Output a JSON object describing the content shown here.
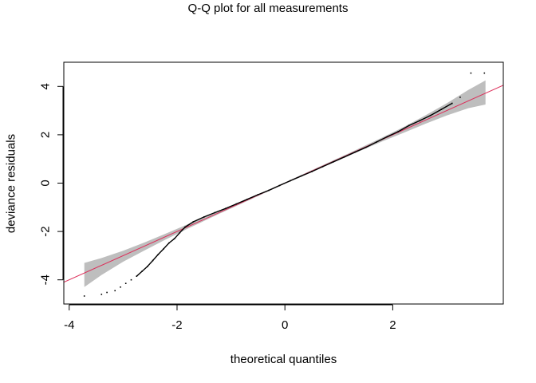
{
  "chart_data": {
    "type": "scatter",
    "title": "Q-Q plot for all measurements",
    "xlabel": "theoretical quantiles",
    "ylabel": "deviance residuals",
    "xlim": [
      -4.1,
      4.05
    ],
    "ylim": [
      -5.0,
      5.0
    ],
    "x_ticks": [
      -4,
      -2,
      0,
      2
    ],
    "y_ticks": [
      -4,
      -2,
      0,
      2,
      4
    ],
    "x_tick_labels": [
      "-4",
      "-2",
      "0",
      "2"
    ],
    "y_tick_labels": [
      "-4",
      "-2",
      "0",
      "2",
      "4"
    ],
    "grid": false,
    "reference_line": {
      "intercept": 0,
      "slope": 1.0,
      "color": "#dc2f5a"
    },
    "band_color": "#bebebe",
    "point_color": "#000000",
    "confidence_band": [
      {
        "x": -3.72,
        "lower": -4.3,
        "upper": -3.3
      },
      {
        "x": -3.4,
        "lower": -3.8,
        "upper": -3.1
      },
      {
        "x": -3.0,
        "lower": -3.25,
        "upper": -2.8
      },
      {
        "x": -2.6,
        "lower": -2.78,
        "upper": -2.45
      },
      {
        "x": -2.2,
        "lower": -2.32,
        "upper": -2.08
      },
      {
        "x": -1.8,
        "lower": -1.88,
        "upper": -1.7
      },
      {
        "x": -1.2,
        "lower": -1.25,
        "upper": -1.15
      },
      {
        "x": 0.0,
        "lower": -0.03,
        "upper": 0.03
      },
      {
        "x": 1.2,
        "lower": 1.15,
        "upper": 1.25
      },
      {
        "x": 1.8,
        "lower": 1.72,
        "upper": 1.88
      },
      {
        "x": 2.2,
        "lower": 2.08,
        "upper": 2.32
      },
      {
        "x": 2.6,
        "lower": 2.45,
        "upper": 2.8
      },
      {
        "x": 3.0,
        "lower": 2.8,
        "upper": 3.3
      },
      {
        "x": 3.4,
        "lower": 3.1,
        "upper": 3.85
      },
      {
        "x": 3.72,
        "lower": 3.25,
        "upper": 4.25
      }
    ],
    "points": [
      [
        -3.72,
        -4.67
      ],
      [
        -3.4,
        -4.6
      ],
      [
        -3.3,
        -4.52
      ],
      [
        -3.15,
        -4.45
      ],
      [
        -3.05,
        -4.3
      ],
      [
        -2.95,
        -4.15
      ],
      [
        -2.85,
        -4.0
      ],
      [
        -2.75,
        -3.85
      ],
      [
        -2.65,
        -3.65
      ],
      [
        -2.55,
        -3.45
      ],
      [
        -2.45,
        -3.2
      ],
      [
        -2.35,
        -2.95
      ],
      [
        -2.25,
        -2.72
      ],
      [
        -2.15,
        -2.48
      ],
      [
        -2.05,
        -2.3
      ],
      [
        -1.95,
        -2.05
      ],
      [
        -1.85,
        -1.82
      ],
      [
        -1.7,
        -1.6
      ],
      [
        -1.5,
        -1.4
      ],
      [
        -1.3,
        -1.22
      ],
      [
        -1.1,
        -1.05
      ],
      [
        -0.9,
        -0.86
      ],
      [
        -0.7,
        -0.67
      ],
      [
        -0.5,
        -0.48
      ],
      [
        -0.3,
        -0.3
      ],
      [
        -0.1,
        -0.1
      ],
      [
        0.1,
        0.1
      ],
      [
        0.3,
        0.29
      ],
      [
        0.5,
        0.48
      ],
      [
        0.7,
        0.68
      ],
      [
        0.9,
        0.88
      ],
      [
        1.1,
        1.08
      ],
      [
        1.3,
        1.28
      ],
      [
        1.5,
        1.48
      ],
      [
        1.7,
        1.7
      ],
      [
        1.9,
        1.92
      ],
      [
        2.1,
        2.13
      ],
      [
        2.3,
        2.38
      ],
      [
        2.5,
        2.58
      ],
      [
        2.7,
        2.8
      ],
      [
        2.9,
        3.05
      ],
      [
        3.1,
        3.3
      ],
      [
        3.25,
        3.55
      ],
      [
        3.45,
        4.55
      ],
      [
        3.7,
        4.55
      ]
    ]
  }
}
